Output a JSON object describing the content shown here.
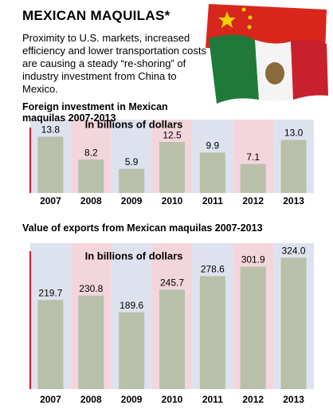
{
  "header": {
    "title": "MEXICAN MAQUILAS*",
    "text": "Proximity to U.S. markets, increased efficiency and lower transportation costs are causing a steady “re-shoring” of industry investment from China to Mexico."
  },
  "chart_data": [
    {
      "type": "bar",
      "title": "Foreign investment in Mexican maquilas 2007-2013",
      "subtitle": "In billions of dollars",
      "categories": [
        "2007",
        "2008",
        "2009",
        "2010",
        "2011",
        "2012",
        "2013"
      ],
      "values": [
        13.8,
        8.2,
        5.9,
        12.5,
        9.9,
        7.1,
        13.0
      ],
      "value_labels": [
        "13.8",
        "8.2",
        "5.9",
        "12.5",
        "9.9",
        "7.1",
        "13.0"
      ],
      "color": "#b8c0aa",
      "band_colors": [
        "#dde2ee",
        "#f3d5dc"
      ],
      "ylim": [
        0,
        18
      ]
    },
    {
      "type": "bar",
      "title": "Value of exports from Mexican maquilas 2007-2013",
      "subtitle": "In billions of dollars",
      "categories": [
        "2007",
        "2008",
        "2009",
        "2010",
        "2011",
        "2012",
        "2013"
      ],
      "values": [
        219.7,
        230.8,
        189.6,
        245.7,
        278.6,
        301.9,
        324.0
      ],
      "value_labels": [
        "219.7",
        "230.8",
        "189.6",
        "245.7",
        "278.6",
        "301.9",
        "324.0"
      ],
      "color": "#b8c0aa",
      "band_colors": [
        "#dde2ee",
        "#f3d5dc"
      ],
      "ylim": [
        0,
        360
      ]
    }
  ]
}
